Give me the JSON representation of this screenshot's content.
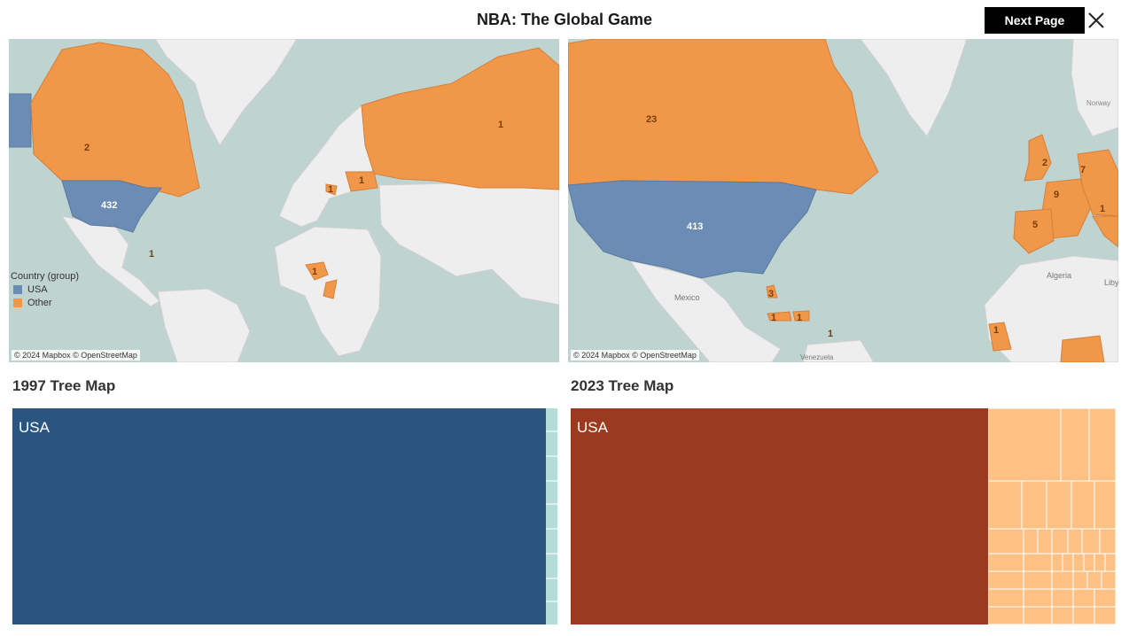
{
  "header": {
    "title": "NBA: The Global Game",
    "next_label": "Next Page"
  },
  "colors": {
    "usa_map": "#6b8db5",
    "other_map": "#f0974a",
    "tree_1997_usa": "#2a5581",
    "tree_1997_other": "#b5ddd8",
    "tree_2023_usa": "#9b3a1e",
    "tree_2023_other": "#fdc185",
    "water": "#bfd3d0",
    "land": "#eeeeee"
  },
  "map_1997": {
    "credit": "© 2024 Mapbox © OpenStreetMap",
    "legend": {
      "title": "Country (group)",
      "items": [
        "USA",
        "Other"
      ]
    },
    "labels": {
      "usa": "432",
      "canada": "2",
      "russia": "1",
      "nigeria": "1",
      "ukraine": "1",
      "croatia": "1",
      "caribbean": "1"
    }
  },
  "map_2023": {
    "credit": "© 2024 Mapbox © OpenStreetMap",
    "place_names": {
      "mexico": "Mexico",
      "algeria": "Algeria",
      "libya": "Liby",
      "venezuela": "Venezuela",
      "norway": "Norway"
    },
    "labels": {
      "usa": "413",
      "canada": "23",
      "uk": "2",
      "france": "9",
      "germany": "7",
      "spain": "5",
      "bahamas": "3",
      "cuba": "1",
      "haiti": "1",
      "puerto_rico": "1",
      "senegal": "1",
      "italy": "1"
    }
  },
  "tree_1997": {
    "title": "1997 Tree Map",
    "usa_label": "USA"
  },
  "tree_2023": {
    "title": "2023 Tree Map",
    "usa_label": "USA"
  }
}
